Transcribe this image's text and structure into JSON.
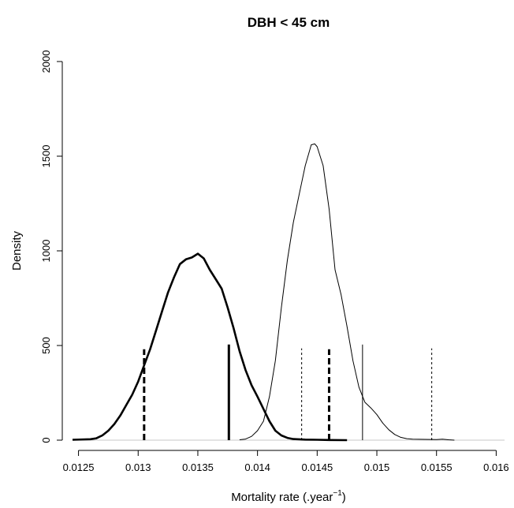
{
  "chart_data": {
    "type": "line",
    "title": "DBH < 45 cm",
    "xlabel": "Mortality rate (.year",
    "xlabel_sup": "−1",
    "xlabel_end": ")",
    "ylabel": "Density",
    "xlim": [
      0.01245,
      0.01607
    ],
    "ylim": [
      0,
      2000
    ],
    "x_ticks": [
      {
        "value": 0.0125,
        "label": "0.0125"
      },
      {
        "value": 0.013,
        "label": "0.013"
      },
      {
        "value": 0.0135,
        "label": "0.0135"
      },
      {
        "value": 0.014,
        "label": "0.014"
      },
      {
        "value": 0.0145,
        "label": "0.0145"
      },
      {
        "value": 0.015,
        "label": "0.015"
      },
      {
        "value": 0.0155,
        "label": "0.0155"
      },
      {
        "value": 0.016,
        "label": "0.016"
      }
    ],
    "y_ticks": [
      {
        "value": 0,
        "label": "0"
      },
      {
        "value": 500,
        "label": "500"
      },
      {
        "value": 1000,
        "label": "1000"
      },
      {
        "value": 1500,
        "label": "1500"
      },
      {
        "value": 2000,
        "label": "2000"
      }
    ],
    "grid": false,
    "legend": "none",
    "series": [
      {
        "line_style": "thick",
        "points": [
          [
            0.01245,
            2
          ],
          [
            0.0126,
            5
          ],
          [
            0.01265,
            10
          ],
          [
            0.0127,
            25
          ],
          [
            0.01275,
            50
          ],
          [
            0.0128,
            85
          ],
          [
            0.01285,
            130
          ],
          [
            0.0129,
            185
          ],
          [
            0.01295,
            240
          ],
          [
            0.013,
            310
          ],
          [
            0.01305,
            395
          ],
          [
            0.0131,
            480
          ],
          [
            0.01315,
            580
          ],
          [
            0.0132,
            680
          ],
          [
            0.01325,
            780
          ],
          [
            0.0133,
            860
          ],
          [
            0.01335,
            930
          ],
          [
            0.0134,
            955
          ],
          [
            0.01345,
            965
          ],
          [
            0.0135,
            985
          ],
          [
            0.01355,
            960
          ],
          [
            0.0136,
            900
          ],
          [
            0.01365,
            850
          ],
          [
            0.0137,
            800
          ],
          [
            0.01375,
            700
          ],
          [
            0.0138,
            590
          ],
          [
            0.01385,
            470
          ],
          [
            0.0139,
            370
          ],
          [
            0.01395,
            290
          ],
          [
            0.014,
            230
          ],
          [
            0.01405,
            165
          ],
          [
            0.0141,
            100
          ],
          [
            0.01415,
            50
          ],
          [
            0.0142,
            25
          ],
          [
            0.01425,
            12
          ],
          [
            0.0143,
            6
          ],
          [
            0.0144,
            3
          ],
          [
            0.0145,
            2
          ],
          [
            0.0146,
            1
          ],
          [
            0.01475,
            0
          ]
        ]
      },
      {
        "line_style": "thin",
        "points": [
          [
            0.01385,
            2
          ],
          [
            0.0139,
            6
          ],
          [
            0.01395,
            20
          ],
          [
            0.014,
            50
          ],
          [
            0.01405,
            100
          ],
          [
            0.0141,
            230
          ],
          [
            0.01415,
            420
          ],
          [
            0.0142,
            700
          ],
          [
            0.01425,
            950
          ],
          [
            0.0143,
            1150
          ],
          [
            0.01435,
            1300
          ],
          [
            0.0144,
            1450
          ],
          [
            0.01445,
            1560
          ],
          [
            0.01448,
            1565
          ],
          [
            0.0145,
            1550
          ],
          [
            0.01455,
            1450
          ],
          [
            0.0146,
            1220
          ],
          [
            0.01465,
            900
          ],
          [
            0.0147,
            770
          ],
          [
            0.01475,
            600
          ],
          [
            0.0148,
            420
          ],
          [
            0.01485,
            280
          ],
          [
            0.0149,
            200
          ],
          [
            0.01495,
            170
          ],
          [
            0.015,
            135
          ],
          [
            0.01505,
            90
          ],
          [
            0.0151,
            55
          ],
          [
            0.01515,
            30
          ],
          [
            0.0152,
            15
          ],
          [
            0.01525,
            8
          ],
          [
            0.0153,
            5
          ],
          [
            0.0154,
            4
          ],
          [
            0.0155,
            3
          ],
          [
            0.01555,
            5
          ],
          [
            0.0156,
            2
          ],
          [
            0.01565,
            0
          ]
        ]
      }
    ],
    "vertical_lines": [
      {
        "x": 0.01305,
        "height": 480,
        "style": "thick-dashed"
      },
      {
        "x": 0.01376,
        "height": 505,
        "style": "thick-solid"
      },
      {
        "x": 0.0146,
        "height": 480,
        "style": "thick-dashed"
      },
      {
        "x": 0.01437,
        "height": 485,
        "style": "thin-dashed"
      },
      {
        "x": 0.01488,
        "height": 505,
        "style": "thin-solid"
      },
      {
        "x": 0.01546,
        "height": 485,
        "style": "thin-dashed"
      }
    ]
  }
}
